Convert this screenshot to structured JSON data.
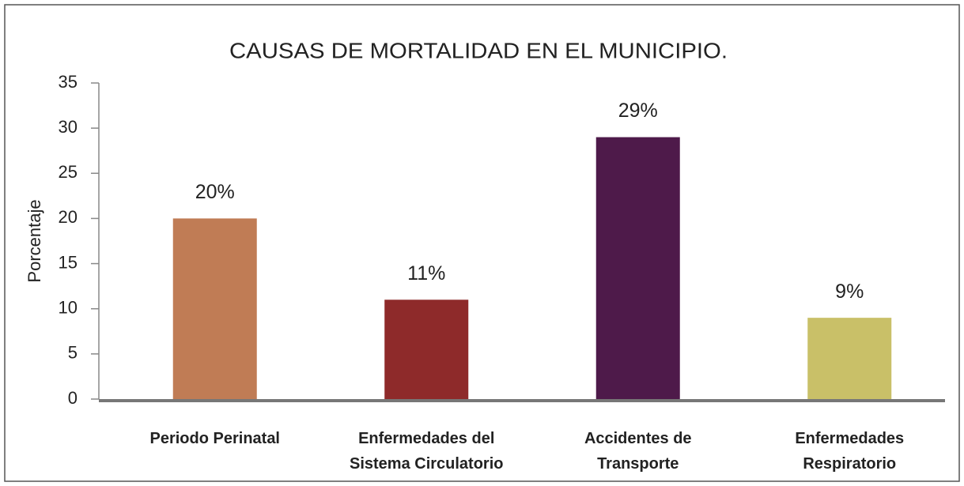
{
  "chart_data": {
    "type": "bar",
    "title": "CAUSAS DE MORTALIDAD EN EL MUNICIPIO.",
    "y_label": "Porcentaje",
    "categories": [
      "Periodo Perinatal",
      "Enfermedades del\nSistema Circulatorio",
      "Accidentes de\nTransporte",
      "Enfermedades\nRespiratorio"
    ],
    "values": [
      20,
      11,
      29,
      9
    ],
    "value_labels": [
      "20%",
      "11%",
      "29%",
      "9%"
    ],
    "colors": [
      "#c07c55",
      "#8e2a2a",
      "#4e1a4a",
      "#c9c068"
    ],
    "ylim": [
      0,
      35
    ],
    "yticks": [
      0,
      5,
      10,
      15,
      20,
      25,
      30,
      35
    ],
    "grid": false
  }
}
